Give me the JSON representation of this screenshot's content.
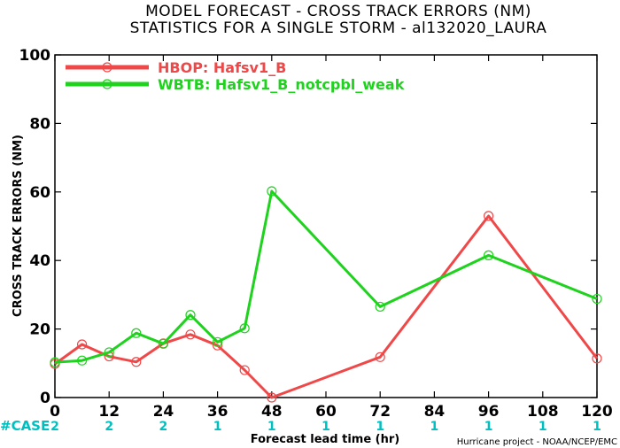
{
  "chart_data": {
    "type": "line",
    "title": "MODEL FORECAST - CROSS TRACK ERRORS (NM)",
    "subtitle": "STATISTICS FOR A SINGLE STORM - al132020_LAURA",
    "xlabel": "Forecast lead time (hr)",
    "ylabel": "CROSS TRACK ERRORS (NM)",
    "xlim": [
      0,
      120
    ],
    "ylim": [
      0,
      100
    ],
    "x_ticks": [
      0,
      12,
      24,
      36,
      48,
      60,
      72,
      84,
      96,
      108,
      120
    ],
    "y_ticks": [
      0,
      20,
      40,
      60,
      80,
      100
    ],
    "legend_position": "top-left",
    "series": [
      {
        "name": "HBOP: Hafsv1_B",
        "color": "#f04848",
        "x": [
          0,
          6,
          12,
          18,
          24,
          30,
          36,
          42,
          48,
          72,
          96,
          120
        ],
        "values": [
          9.8,
          15.5,
          12.0,
          10.4,
          15.8,
          18.4,
          15.2,
          8.0,
          0.0,
          11.8,
          53.0,
          11.4
        ]
      },
      {
        "name": "WBTB: Hafsv1_B_notcpbl_weak",
        "color": "#1ed21e",
        "x": [
          0,
          6,
          12,
          18,
          24,
          30,
          36,
          42,
          48,
          72,
          96,
          120
        ],
        "values": [
          10.3,
          10.8,
          13.2,
          18.8,
          15.7,
          24.1,
          16.2,
          20.2,
          60.2,
          26.5,
          41.5,
          28.8
        ]
      }
    ],
    "case_label": "#CASE",
    "cases": [
      {
        "x": 0,
        "n": "2"
      },
      {
        "x": 12,
        "n": "2"
      },
      {
        "x": 24,
        "n": "2"
      },
      {
        "x": 36,
        "n": "1"
      },
      {
        "x": 48,
        "n": "1"
      },
      {
        "x": 60,
        "n": "1"
      },
      {
        "x": 72,
        "n": "1"
      },
      {
        "x": 84,
        "n": "1"
      },
      {
        "x": 96,
        "n": "1"
      },
      {
        "x": 108,
        "n": "1"
      },
      {
        "x": 120,
        "n": "1"
      }
    ],
    "credit": "Hurricane project - NOAA/NCEP/EMC"
  }
}
